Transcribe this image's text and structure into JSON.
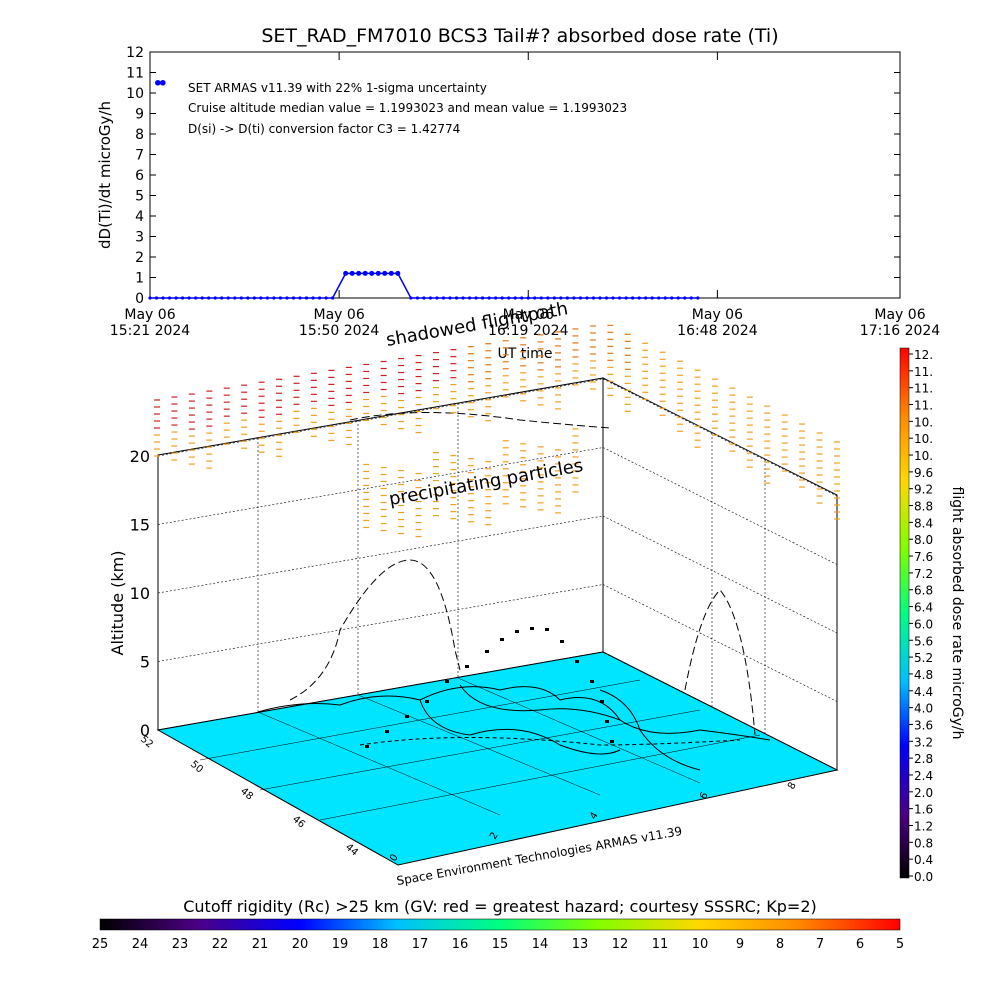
{
  "title": "SET_RAD_FM7010  BCS3 Tail#? absorbed dose rate (Ti)",
  "chart_data": [
    {
      "type": "line",
      "ylabel": "dD(Ti)/dt microGy/h",
      "xlabel": "UT time",
      "ylim": [
        0,
        12
      ],
      "yticks": [
        "0",
        "1",
        "2",
        "3",
        "4",
        "5",
        "6",
        "7",
        "8",
        "9",
        "10",
        "11",
        "12"
      ],
      "xticks": [
        {
          "line1": "May 06",
          "line2": "15:21 2024"
        },
        {
          "line1": "May 06",
          "line2": "15:50 2024"
        },
        {
          "line1": "May 06",
          "line2": "16:19 2024"
        },
        {
          "line1": "May 06",
          "line2": "16:48 2024"
        },
        {
          "line1": "May 06",
          "line2": "17:16 2024"
        }
      ],
      "x_minutes_from_1521": [
        0,
        29,
        58,
        87,
        115
      ],
      "annotations": [
        "SET ARMAS v11.39 with 22% 1-sigma uncertainty",
        "Cruise altitude median value = 1.1993023 and mean value = 1.1993023",
        "D(si) -> D(ti) conversion factor C3 = 1.42774"
      ],
      "legend_point": {
        "x_min": 1.2,
        "y": 10.5
      },
      "series": [
        {
          "color": "#0000ff",
          "segments": [
            {
              "x_start": 0,
              "x_end": 28,
              "y": 0
            },
            {
              "x_start": 28,
              "x_end": 30,
              "y_start": 0,
              "y_end": 1.2
            },
            {
              "x_start": 30,
              "x_end": 38,
              "y": 1.2
            },
            {
              "x_start": 38,
              "x_end": 40,
              "y_start": 1.2,
              "y_end": 0
            },
            {
              "x_start": 40,
              "x_end": 84,
              "y": 0
            }
          ]
        }
      ]
    },
    {
      "type": "scatter",
      "title": "shadowed flightpath",
      "subtitle": "precipitating particles",
      "zlabel": "Altitude (km)",
      "zticks": [
        "0",
        "5",
        "10",
        "15",
        "20"
      ],
      "latitude_ticks": [
        "52",
        "50",
        "48",
        "46",
        "44"
      ],
      "longitude_ticks": [
        "0",
        "2",
        "4",
        "6",
        "8"
      ]
    }
  ],
  "right_colorbar": {
    "label": "flight absorbed dose rate microGy/h",
    "ticks": [
      "12.",
      "11.",
      "11.",
      "11.",
      "10.",
      "10.",
      "10.",
      "9.6",
      "9.2",
      "8.8",
      "8.4",
      "8.0",
      "7.6",
      "7.2",
      "6.8",
      "6.4",
      "6.0",
      "5.6",
      "5.2",
      "4.8",
      "4.4",
      "4.0",
      "3.6",
      "3.2",
      "2.8",
      "2.4",
      "2.0",
      "1.6",
      "1.2",
      "0.8",
      "0.4",
      "0.0"
    ],
    "colors": [
      "#000000",
      "#4b0082",
      "#0000ff",
      "#00bfff",
      "#00ff80",
      "#7fff00",
      "#ffd700",
      "#ff8c00",
      "#ff0000"
    ]
  },
  "bottom_colorbar": {
    "label": "Cutoff rigidity (Rc) >25 km (GV: red = greatest hazard; courtesy SSSRC; Kp=2)",
    "ticks": [
      "25",
      "24",
      "23",
      "22",
      "21",
      "20",
      "19",
      "18",
      "17",
      "16",
      "15",
      "14",
      "13",
      "12",
      "11",
      "10",
      "9",
      "8",
      "7",
      "6",
      "5"
    ],
    "colors": [
      "#000000",
      "#4b0082",
      "#0000ff",
      "#00bfff",
      "#00ff80",
      "#7fff00",
      "#ffd700",
      "#ff8c00",
      "#ff0000"
    ]
  },
  "credit": "Space Environment Technologies ARMAS v11.39"
}
